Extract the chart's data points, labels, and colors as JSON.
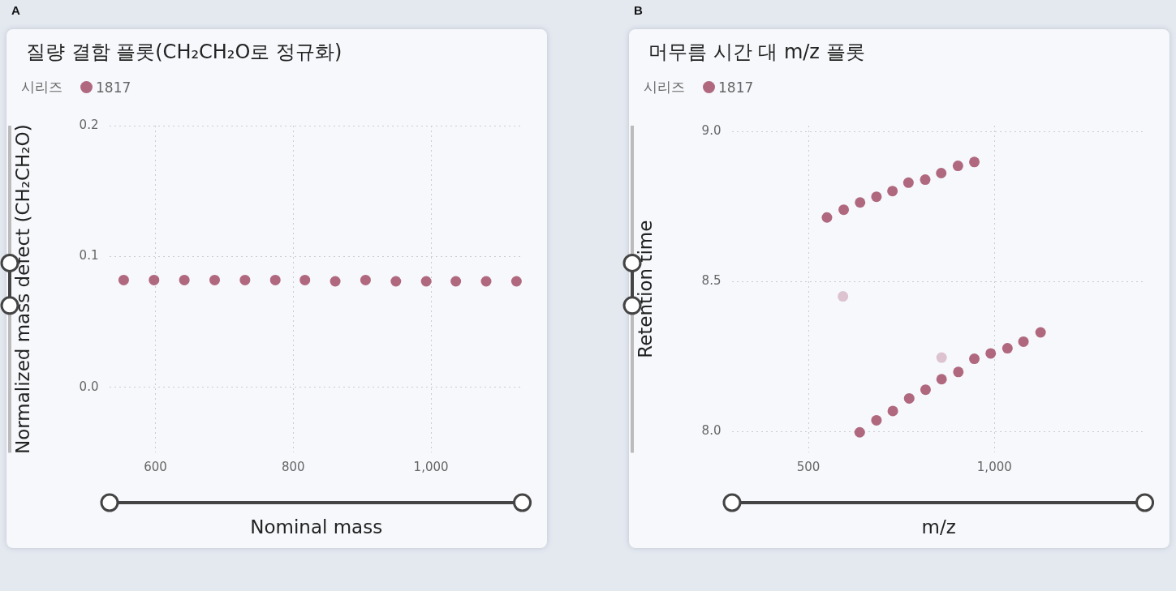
{
  "chart_data": [
    {
      "type": "scatter",
      "title": "질량 결함 플롯(CH₂CH₂O로 정규화)",
      "xlabel": "Nominal mass",
      "ylabel": "Normalized mass defect (CH₂CH₂O)",
      "legend_title": "시리즈",
      "annotations": [
        "A"
      ],
      "legend": "top left",
      "grid": true,
      "marker": "circle",
      "xlim": [
        534,
        1133
      ],
      "xticks": [
        600,
        800,
        {
          "value": 1000,
          "label": "1,000"
        }
      ],
      "ylim": [
        -0.05,
        0.2
      ],
      "yticks": [
        {
          "value": 0,
          "label": "0.0"
        },
        0.1,
        0.2
      ],
      "series": [
        {
          "name": "1817",
          "color": "#b0687f",
          "x": [
            554,
            598,
            642,
            686,
            730,
            774,
            817,
            861,
            905,
            949,
            993,
            1036,
            1080,
            1124
          ],
          "values": [
            0.082,
            0.082,
            0.082,
            0.082,
            0.082,
            0.082,
            0.082,
            0.081,
            0.082,
            0.081,
            0.081,
            0.081,
            0.081,
            0.081
          ]
        }
      ]
    },
    {
      "type": "scatter",
      "title": "머무름 시간 대 m/z 플롯",
      "xlabel": "m/z",
      "ylabel": "Retention time",
      "legend_title": "시리즈",
      "annotations": [
        "B"
      ],
      "legend": "top left",
      "grid": true,
      "marker": "circle",
      "xlim": [
        296,
        1405
      ],
      "xticks": [
        500,
        {
          "value": 1000,
          "label": "1,000"
        }
      ],
      "ylim": [
        7.93,
        9.02
      ],
      "yticks": [
        {
          "value": 8,
          "label": "8.0"
        },
        8.5,
        {
          "value": 9,
          "label": "9.0"
        }
      ],
      "series": [
        {
          "name": "1817",
          "color": "#b0687f",
          "x": [
            550,
            595,
            639,
            683,
            726,
            769,
            814,
            857,
            902,
            946,
            638,
            683,
            727,
            771,
            815,
            858,
            903,
            946,
            990,
            1035,
            1078,
            1124
          ],
          "values": [
            8.714,
            8.74,
            8.764,
            8.783,
            8.802,
            8.83,
            8.84,
            8.862,
            8.886,
            8.899,
            7.998,
            8.038,
            8.069,
            8.111,
            8.14,
            8.175,
            8.199,
            8.243,
            8.261,
            8.278,
            8.3,
            8.331
          ]
        },
        {
          "color": "#dcc3cf",
          "x": [
            593,
            858
          ],
          "values": [
            8.451,
            8.247
          ]
        }
      ]
    }
  ]
}
